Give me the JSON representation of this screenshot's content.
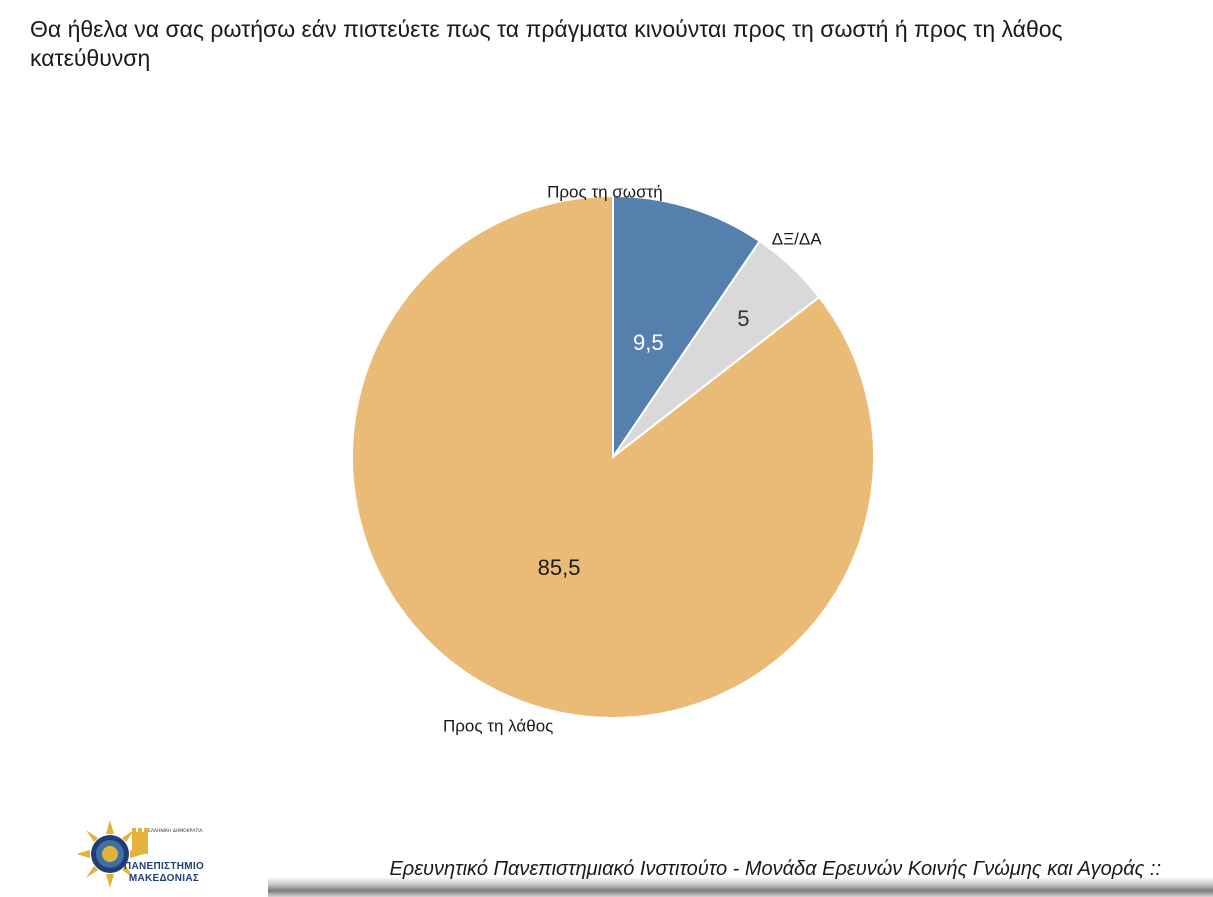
{
  "title": "Θα ήθελα να σας ρωτήσω εάν πιστεύετε πως τα πράγματα κινούνται προς τη σωστή ή προς τη λάθος κατεύθυνση",
  "chart_data": {
    "type": "pie",
    "title": "Θα ήθελα να σας ρωτήσω εάν πιστεύετε πως τα πράγματα κινούνται προς τη σωστή ή προς τη λάθος κατεύθυνση",
    "start_angle_deg": -90,
    "direction": "clockwise",
    "slices": [
      {
        "label": "Προς τη σωστή",
        "value": 9.5,
        "value_label": "9,5",
        "color": "#5580ad",
        "value_text_color": "#ffffff"
      },
      {
        "label": "ΔΞ/ΔΑ",
        "value": 5,
        "value_label": "5",
        "color": "#d9d9d9",
        "value_text_color": "#333333"
      },
      {
        "label": "Προς τη λάθος",
        "value": 85.5,
        "value_label": "85,5",
        "color": "#eabb76",
        "value_text_color": "#1a1a1a"
      }
    ]
  },
  "logo": {
    "name": "ΠΑΝΕΠΙΣΤΗΜΙΟ ΜΑΚΕΔΟΝΙΑΣ",
    "small_text": "ΕΛΛΗΝΙΚΗ ΔΗΜΟΚΡΑΤΙΑ"
  },
  "footer": {
    "text": "Ερευνητικό Πανεπιστημιακό Ινστιτούτο - Μονάδα Ερευνών Κοινής Γνώμης και Αγοράς ::"
  }
}
